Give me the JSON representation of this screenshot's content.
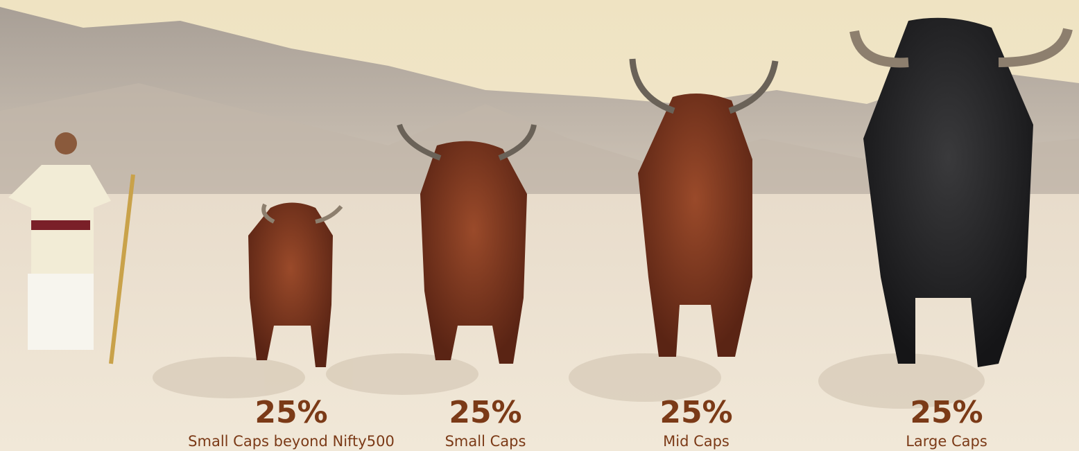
{
  "allocations": [
    {
      "percent": "25%",
      "label": "Small Caps beyond Nifty500"
    },
    {
      "percent": "25%",
      "label": "Small Caps"
    },
    {
      "percent": "25%",
      "label": "Mid Caps"
    },
    {
      "percent": "25%",
      "label": "Large Caps"
    }
  ]
}
